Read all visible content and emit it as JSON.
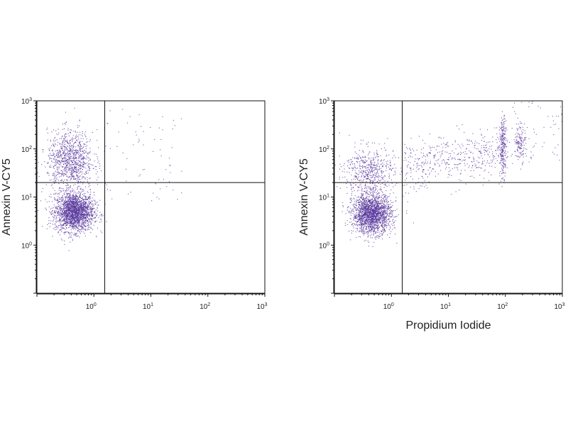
{
  "chart_data": [
    {
      "type": "scatter",
      "title": "",
      "xlabel": "",
      "ylabel": "Annexin V-CY5",
      "xscale": "log",
      "yscale": "log",
      "xlim": [
        0.1,
        1000
      ],
      "ylim": [
        0.1,
        1000
      ],
      "xticks": [
        {
          "base": "10",
          "exp": "0"
        },
        {
          "base": "10",
          "exp": "1"
        },
        {
          "base": "10",
          "exp": "2"
        },
        {
          "base": "10",
          "exp": "3"
        }
      ],
      "yticks": [
        {
          "base": "10",
          "exp": "0"
        },
        {
          "base": "10",
          "exp": "1"
        },
        {
          "base": "10",
          "exp": "2"
        },
        {
          "base": "10",
          "exp": "3"
        }
      ],
      "gates": {
        "x": 1.55,
        "y": 20
      },
      "grid": false,
      "point_color": "#5b3a9e",
      "populations": [
        {
          "center": [
            0.45,
            5
          ],
          "spread_decades": [
            0.17,
            0.2
          ],
          "count": 2200
        },
        {
          "center": [
            0.38,
            60
          ],
          "spread_decades": [
            0.2,
            0.3
          ],
          "count": 1000
        },
        {
          "x_range": [
            1.5,
            35
          ],
          "y_range": [
            8,
            700
          ],
          "count": 70
        }
      ]
    },
    {
      "type": "scatter",
      "title": "",
      "xlabel": "Propidium Iodide",
      "ylabel": "Annexin V-CY5",
      "xscale": "log",
      "yscale": "log",
      "xlim": [
        0.1,
        1000
      ],
      "ylim": [
        0.1,
        1000
      ],
      "xticks": [
        {
          "base": "10",
          "exp": "0"
        },
        {
          "base": "10",
          "exp": "1"
        },
        {
          "base": "10",
          "exp": "2"
        },
        {
          "base": "10",
          "exp": "3"
        }
      ],
      "yticks": [
        {
          "base": "10",
          "exp": "0"
        },
        {
          "base": "10",
          "exp": "1"
        },
        {
          "base": "10",
          "exp": "2"
        },
        {
          "base": "10",
          "exp": "3"
        }
      ],
      "gates": {
        "x": 1.55,
        "y": 20
      },
      "grid": false,
      "point_color": "#5b3a9e",
      "populations": [
        {
          "center": [
            0.45,
            4.5
          ],
          "spread_decades": [
            0.17,
            0.2
          ],
          "count": 2000
        },
        {
          "center": [
            0.4,
            35
          ],
          "spread_decades": [
            0.22,
            0.25
          ],
          "count": 550
        },
        {
          "x_range": [
            1.6,
            80
          ],
          "y_center_start": 45,
          "y_center_end": 80,
          "spread_decades_y": 0.25,
          "count": 450
        },
        {
          "center": [
            90,
            110
          ],
          "spread_decades": [
            0.03,
            0.3
          ],
          "count": 260
        },
        {
          "center": [
            180,
            150
          ],
          "spread_decades": [
            0.05,
            0.2
          ],
          "count": 130
        },
        {
          "x_range": [
            100,
            1000
          ],
          "y_range": [
            50,
            1000
          ],
          "count": 70
        }
      ]
    }
  ]
}
